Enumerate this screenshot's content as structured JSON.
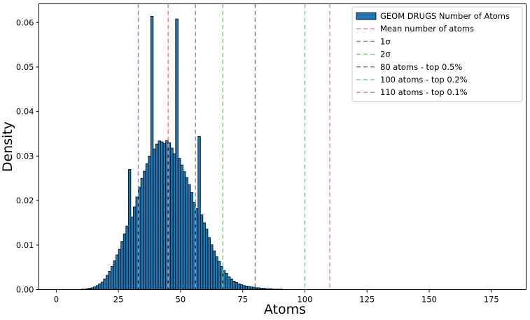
{
  "chart_data": {
    "type": "bar",
    "title": "",
    "xlabel": "Atoms",
    "ylabel": "Density",
    "xlim": [
      -7,
      189
    ],
    "ylim": [
      0,
      0.0642
    ],
    "xticks": [
      0,
      25,
      50,
      75,
      100,
      125,
      150,
      175
    ],
    "xtick_labels": [
      "0",
      "25",
      "50",
      "75",
      "100",
      "125",
      "150",
      "175"
    ],
    "yticks": [
      0,
      0.01,
      0.02,
      0.03,
      0.04,
      0.05,
      0.06
    ],
    "ytick_labels": [
      "0.00",
      "0.01",
      "0.02",
      "0.03",
      "0.04",
      "0.05",
      "0.06"
    ],
    "grid": false,
    "legend_position": "top-right",
    "bar_color": "#1f77b4",
    "series": [
      {
        "name": "GEOM DRUGS Number of Atoms",
        "bin_width": 1,
        "bins_start": [
          10,
          11,
          12,
          13,
          14,
          15,
          16,
          17,
          18,
          19,
          20,
          21,
          22,
          23,
          24,
          25,
          26,
          27,
          28,
          29,
          30,
          31,
          32,
          33,
          34,
          35,
          36,
          37,
          38,
          39,
          40,
          41,
          42,
          43,
          44,
          45,
          46,
          47,
          48,
          49,
          50,
          51,
          52,
          53,
          54,
          55,
          56,
          57,
          58,
          59,
          60,
          61,
          62,
          63,
          64,
          65,
          66,
          67,
          68,
          69,
          70,
          71,
          72,
          73,
          74,
          75,
          76,
          77,
          78,
          79,
          80,
          81,
          82,
          83,
          84,
          85,
          86,
          87,
          88,
          89,
          90
        ],
        "values": [
          0.0001,
          0.0001,
          0.0002,
          0.0003,
          0.0004,
          0.0006,
          0.0009,
          0.0013,
          0.0017,
          0.0024,
          0.0032,
          0.0041,
          0.0052,
          0.0065,
          0.0078,
          0.0091,
          0.0108,
          0.0125,
          0.0143,
          0.027,
          0.0163,
          0.0186,
          0.0208,
          0.023,
          0.025,
          0.0266,
          0.0283,
          0.03,
          0.0614,
          0.0316,
          0.0327,
          0.0334,
          0.0332,
          0.0328,
          0.0335,
          0.033,
          0.0318,
          0.0305,
          0.0608,
          0.0295,
          0.028,
          0.0265,
          0.0252,
          0.0236,
          0.0218,
          0.0196,
          0.0182,
          0.0344,
          0.0168,
          0.015,
          0.0136,
          0.0117,
          0.0101,
          0.0087,
          0.0074,
          0.0063,
          0.0052,
          0.0043,
          0.0036,
          0.0029,
          0.0024,
          0.0019,
          0.0016,
          0.0013,
          0.0011,
          0.0009,
          0.0008,
          0.0007,
          0.0006,
          0.0005,
          0.0004,
          0.0004,
          0.0003,
          0.0003,
          0.0002,
          0.0002,
          0.0002,
          0.0001,
          0.0001,
          0.0001,
          0.0001
        ]
      }
    ],
    "vlines": [
      {
        "name": "Mean number of atoms",
        "x": 45,
        "color": "#f08080"
      },
      {
        "name": "1σ",
        "x": 33,
        "color": "#9090c8"
      },
      {
        "name": "1σ",
        "x": 56,
        "color": "#9090c8"
      },
      {
        "name": "2σ",
        "x": 67,
        "color": "#80c880"
      },
      {
        "name": "80 atoms - top 0.5%",
        "x": 80,
        "color": "#808080"
      },
      {
        "name": "100 atoms - top 0.2%",
        "x": 100,
        "color": "#80c8a8"
      },
      {
        "name": "110 atoms - top 0.1%",
        "x": 110,
        "color": "#d088c8"
      }
    ],
    "legend": [
      {
        "label": "GEOM DRUGS Number of Atoms",
        "kind": "patch",
        "color": "#1f77b4"
      },
      {
        "label": "Mean number of atoms",
        "kind": "dashed",
        "color": "#f08080"
      },
      {
        "label": "1σ",
        "kind": "dashed",
        "color": "#9090c8"
      },
      {
        "label": "2σ",
        "kind": "dashed",
        "color": "#80c880"
      },
      {
        "label": "80 atoms - top 0.5%",
        "kind": "dashed",
        "color": "#808080"
      },
      {
        "label": "100 atoms - top 0.2%",
        "kind": "dashed",
        "color": "#80c8a8"
      },
      {
        "label": "110 atoms - top 0.1%",
        "kind": "dashed",
        "color": "#d088c8"
      }
    ]
  }
}
